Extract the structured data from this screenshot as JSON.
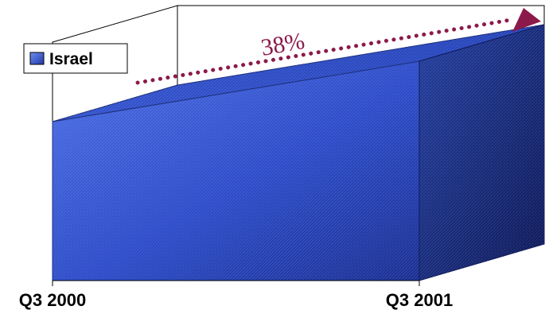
{
  "chart_data": {
    "type": "area",
    "style": "3d",
    "categories": [
      "Q3 2000",
      "Q3 2001"
    ],
    "series": [
      {
        "name": "Israel",
        "values": [
          100,
          138
        ],
        "color": "#2f4fc9"
      }
    ],
    "ylim": [
      0,
      150
    ],
    "grid": true,
    "legend": {
      "position": "top-left",
      "entries": [
        "Israel"
      ]
    },
    "annotations": [
      {
        "text": "38%",
        "type": "growth-arrow",
        "color": "#8b1a4a"
      }
    ]
  }
}
